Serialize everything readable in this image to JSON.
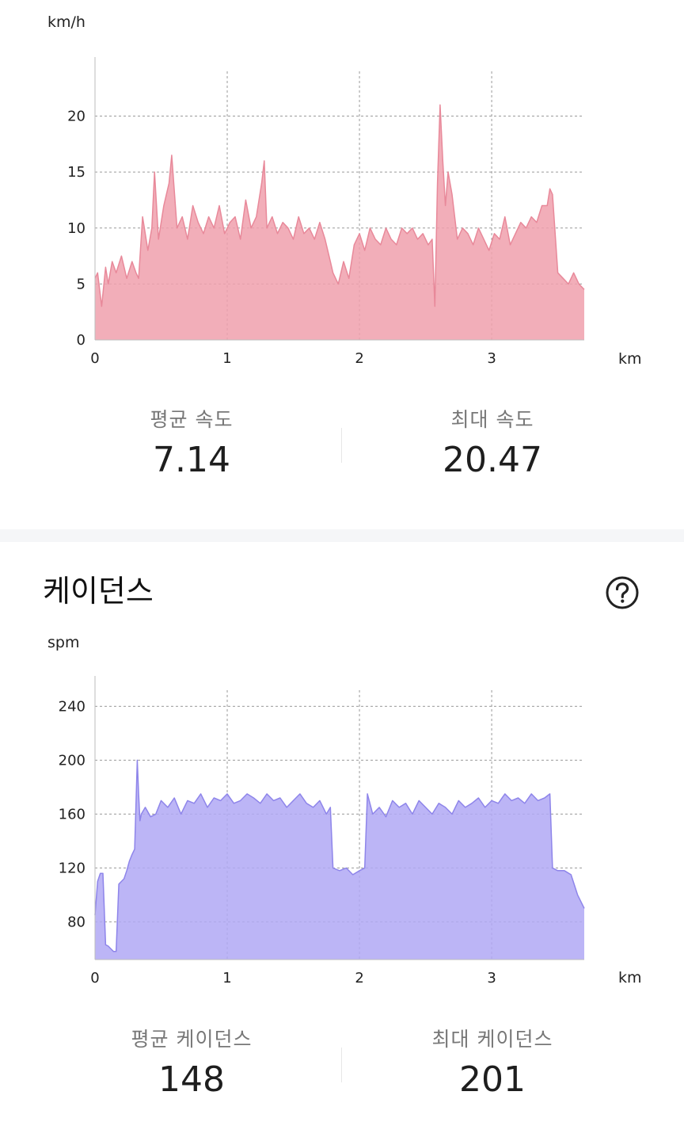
{
  "speed": {
    "y_unit": "km/h",
    "x_unit": "km",
    "avg_label": "평균 속도",
    "avg_value": "7.14",
    "max_label": "최대 속도",
    "max_value": "20.47"
  },
  "cadence": {
    "title": "케이던스",
    "help_icon": "question-circle-icon",
    "y_unit": "spm",
    "x_unit": "km",
    "avg_label": "평균 케이던스",
    "avg_value": "148",
    "max_label": "최대 케이던스",
    "max_value": "201"
  },
  "chart_data": [
    {
      "type": "area",
      "ylabel": "km/h",
      "xlabel": "km",
      "xlim": [
        0,
        3.7
      ],
      "ylim": [
        0,
        24
      ],
      "x_ticks": [
        0,
        1,
        2,
        3
      ],
      "y_ticks": [
        0,
        5,
        10,
        15,
        20
      ],
      "grid": true,
      "color": "#f0a0ad",
      "line_color": "#e8899a",
      "x": [
        0,
        0.02,
        0.05,
        0.08,
        0.1,
        0.13,
        0.16,
        0.2,
        0.24,
        0.28,
        0.31,
        0.33,
        0.36,
        0.4,
        0.43,
        0.45,
        0.48,
        0.52,
        0.56,
        0.58,
        0.62,
        0.66,
        0.7,
        0.74,
        0.78,
        0.82,
        0.86,
        0.9,
        0.94,
        0.98,
        1.02,
        1.06,
        1.1,
        1.14,
        1.18,
        1.22,
        1.26,
        1.28,
        1.3,
        1.34,
        1.38,
        1.42,
        1.46,
        1.5,
        1.54,
        1.58,
        1.62,
        1.66,
        1.7,
        1.74,
        1.78,
        1.8,
        1.84,
        1.88,
        1.92,
        1.96,
        2.0,
        2.04,
        2.08,
        2.12,
        2.16,
        2.2,
        2.24,
        2.28,
        2.32,
        2.36,
        2.4,
        2.44,
        2.48,
        2.52,
        2.55,
        2.57,
        2.59,
        2.61,
        2.63,
        2.65,
        2.67,
        2.7,
        2.74,
        2.78,
        2.82,
        2.86,
        2.9,
        2.94,
        2.98,
        3.02,
        3.06,
        3.1,
        3.14,
        3.18,
        3.22,
        3.26,
        3.3,
        3.34,
        3.38,
        3.42,
        3.44,
        3.46,
        3.5,
        3.54,
        3.58,
        3.62,
        3.66,
        3.7
      ],
      "series": [
        {
          "values": [
            5.5,
            6.0,
            3.0,
            6.5,
            5.0,
            7.0,
            6.0,
            7.5,
            5.5,
            7.0,
            6.0,
            5.5,
            11.0,
            8.0,
            10.0,
            15.0,
            9.0,
            12.0,
            14.0,
            16.5,
            10.0,
            11.0,
            9.0,
            12.0,
            10.5,
            9.5,
            11.0,
            10.0,
            12.0,
            9.5,
            10.5,
            11.0,
            9.0,
            12.5,
            10.0,
            11.0,
            14.0,
            16.0,
            10.0,
            11.0,
            9.5,
            10.5,
            10.0,
            9.0,
            11.0,
            9.5,
            10.0,
            9.0,
            10.5,
            9.0,
            7.0,
            6.0,
            5.0,
            7.0,
            5.5,
            8.5,
            9.5,
            8.0,
            10.0,
            9.0,
            8.5,
            10.0,
            9.0,
            8.5,
            10.0,
            9.5,
            10.0,
            9.0,
            9.5,
            8.5,
            9.0,
            3.0,
            14.0,
            21.0,
            16.0,
            12.0,
            15.0,
            13.0,
            9.0,
            10.0,
            9.5,
            8.5,
            10.0,
            9.0,
            8.0,
            9.5,
            9.0,
            11.0,
            8.5,
            9.5,
            10.5,
            10.0,
            11.0,
            10.5,
            12.0,
            12.0,
            13.5,
            13.0,
            6.0,
            5.5,
            5.0,
            6.0,
            5.0,
            4.5
          ]
        }
      ]
    },
    {
      "type": "area",
      "title": "케이던스",
      "ylabel": "spm",
      "xlabel": "km",
      "xlim": [
        0,
        3.7
      ],
      "ylim": [
        52,
        252
      ],
      "x_ticks": [
        0,
        1,
        2,
        3
      ],
      "y_ticks": [
        80,
        120,
        160,
        200,
        240
      ],
      "grid": true,
      "color": "#b0a8f4",
      "line_color": "#8e85ea",
      "x": [
        0,
        0.02,
        0.04,
        0.06,
        0.08,
        0.1,
        0.12,
        0.14,
        0.16,
        0.18,
        0.2,
        0.22,
        0.24,
        0.26,
        0.28,
        0.3,
        0.32,
        0.33,
        0.34,
        0.35,
        0.38,
        0.42,
        0.46,
        0.5,
        0.55,
        0.6,
        0.65,
        0.7,
        0.75,
        0.8,
        0.85,
        0.9,
        0.95,
        1.0,
        1.05,
        1.1,
        1.15,
        1.2,
        1.25,
        1.3,
        1.35,
        1.4,
        1.45,
        1.5,
        1.55,
        1.6,
        1.65,
        1.7,
        1.75,
        1.78,
        1.8,
        1.85,
        1.9,
        1.95,
        2.0,
        2.04,
        2.06,
        2.1,
        2.15,
        2.2,
        2.25,
        2.3,
        2.35,
        2.4,
        2.45,
        2.5,
        2.55,
        2.6,
        2.65,
        2.7,
        2.75,
        2.8,
        2.85,
        2.9,
        2.95,
        3.0,
        3.05,
        3.1,
        3.15,
        3.2,
        3.25,
        3.3,
        3.35,
        3.4,
        3.44,
        3.46,
        3.5,
        3.55,
        3.6,
        3.65,
        3.7
      ],
      "series": [
        {
          "values": [
            85,
            110,
            116,
            116,
            63,
            62,
            60,
            58,
            58,
            108,
            110,
            112,
            118,
            125,
            130,
            134,
            200,
            175,
            155,
            160,
            165,
            158,
            160,
            170,
            165,
            172,
            160,
            170,
            168,
            175,
            165,
            172,
            170,
            175,
            168,
            170,
            175,
            172,
            168,
            175,
            170,
            172,
            165,
            170,
            175,
            168,
            165,
            170,
            160,
            165,
            120,
            118,
            120,
            115,
            118,
            120,
            175,
            160,
            165,
            158,
            170,
            165,
            168,
            160,
            170,
            165,
            160,
            168,
            165,
            160,
            170,
            165,
            168,
            172,
            165,
            170,
            168,
            175,
            170,
            172,
            168,
            175,
            170,
            172,
            175,
            120,
            118,
            118,
            115,
            100,
            90
          ]
        }
      ]
    }
  ]
}
